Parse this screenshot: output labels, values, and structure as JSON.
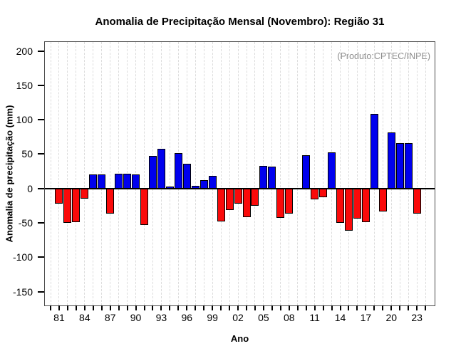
{
  "chart_data": {
    "type": "bar",
    "title": "Anomalia de Precipitação Mensal (Novembro): Região 31",
    "annotation": "(Produto:CPTEC/INPE)",
    "xlabel": "Ano",
    "ylabel": "Anomalia de precipitação (mm)",
    "years": [
      1981,
      1982,
      1983,
      1984,
      1985,
      1986,
      1987,
      1988,
      1989,
      1990,
      1991,
      1992,
      1993,
      1994,
      1995,
      1996,
      1997,
      1998,
      1999,
      2000,
      2001,
      2002,
      2003,
      2004,
      2005,
      2006,
      2007,
      2008,
      2009,
      2010,
      2011,
      2012,
      2013,
      2014,
      2015,
      2016,
      2017,
      2018,
      2019,
      2020,
      2021,
      2022,
      2023
    ],
    "values": [
      -22,
      -50,
      -49,
      -15,
      20,
      20,
      -36,
      22,
      21,
      20,
      -53,
      47,
      58,
      3,
      52,
      36,
      4,
      12,
      18,
      -48,
      -31,
      -22,
      -42,
      -25,
      33,
      32,
      -43,
      -36,
      0,
      48,
      -16,
      -13,
      53,
      -50,
      -61,
      -44,
      -49,
      108,
      -33,
      82,
      66,
      66,
      -36
    ],
    "yticks": [
      200,
      150,
      100,
      50,
      0,
      -50,
      -100,
      -150
    ],
    "xticks": [
      {
        "year": 1981,
        "label": "81"
      },
      {
        "year": 1984,
        "label": "84"
      },
      {
        "year": 1987,
        "label": "87"
      },
      {
        "year": 1990,
        "label": "90"
      },
      {
        "year": 1993,
        "label": "93"
      },
      {
        "year": 1996,
        "label": "96"
      },
      {
        "year": 1999,
        "label": "99"
      },
      {
        "year": 2002,
        "label": "02"
      },
      {
        "year": 2005,
        "label": "05"
      },
      {
        "year": 2008,
        "label": "08"
      },
      {
        "year": 2011,
        "label": "11"
      },
      {
        "year": 2014,
        "label": "14"
      },
      {
        "year": 2017,
        "label": "17"
      },
      {
        "year": 2020,
        "label": "20"
      },
      {
        "year": 2023,
        "label": "23"
      }
    ],
    "ylim": [
      -170,
      213
    ],
    "xlim": [
      1979.33,
      2025.08
    ],
    "tick_years_range": [
      1980,
      2024
    ],
    "positive_color": "#0000EE",
    "negative_color": "#FA0A0A",
    "grid": "vertical-dashed",
    "legend": "none"
  }
}
